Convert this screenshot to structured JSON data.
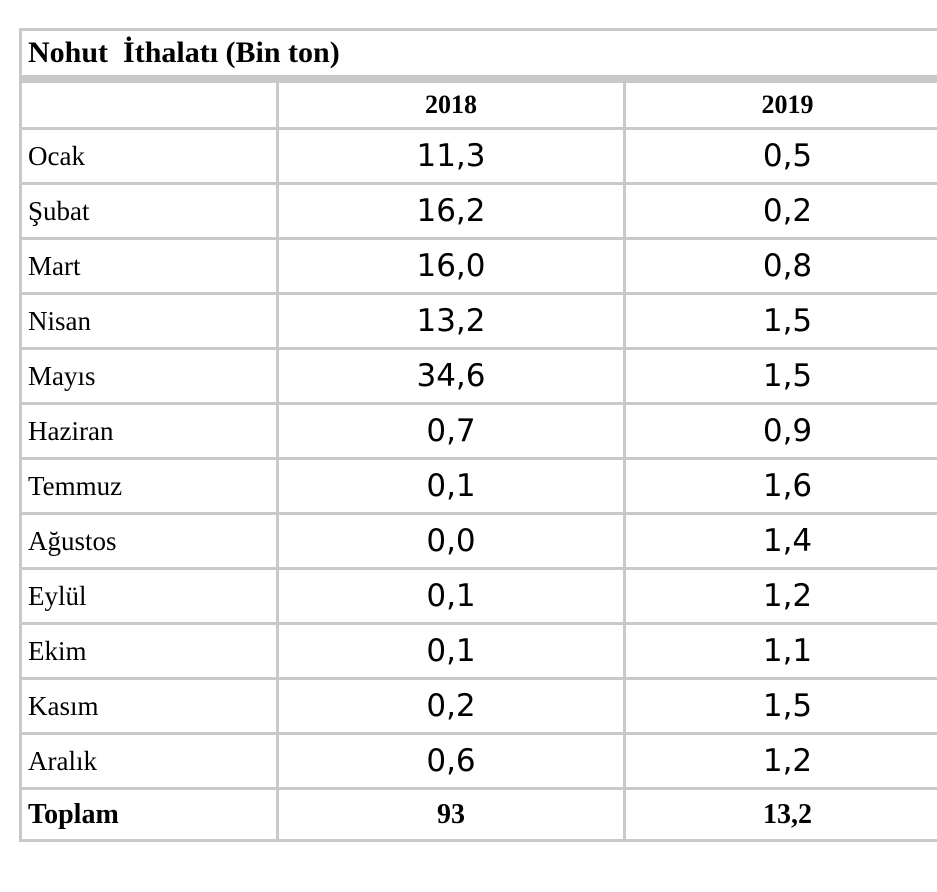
{
  "table": {
    "title": "Nohut  İthalatı (Bin ton)",
    "columns": [
      "",
      "2018",
      "2019"
    ],
    "rows": [
      {
        "month": "Ocak",
        "y2018": "11,3",
        "y2019": "0,5"
      },
      {
        "month": "Şubat",
        "y2018": "16,2",
        "y2019": "0,2"
      },
      {
        "month": "Mart",
        "y2018": "16,0",
        "y2019": "0,8"
      },
      {
        "month": "Nisan",
        "y2018": "13,2",
        "y2019": "1,5"
      },
      {
        "month": "Mayıs",
        "y2018": "34,6",
        "y2019": "1,5"
      },
      {
        "month": "Haziran",
        "y2018": "0,7",
        "y2019": "0,9"
      },
      {
        "month": "Temmuz",
        "y2018": "0,1",
        "y2019": "1,6"
      },
      {
        "month": "Ağustos",
        "y2018": "0,0",
        "y2019": "1,4"
      },
      {
        "month": "Eylül",
        "y2018": "0,1",
        "y2019": "1,2"
      },
      {
        "month": "Ekim",
        "y2018": "0,1",
        "y2019": "1,1"
      },
      {
        "month": "Kasım",
        "y2018": "0,2",
        "y2019": "1,5"
      },
      {
        "month": "Aralık",
        "y2018": "0,6",
        "y2019": "1,2"
      }
    ],
    "total": {
      "label": "Toplam",
      "y2018": "93",
      "y2019": "13,2"
    }
  },
  "colors": {
    "border": "#c9c9c9",
    "text": "#000000",
    "background": "#ffffff"
  }
}
